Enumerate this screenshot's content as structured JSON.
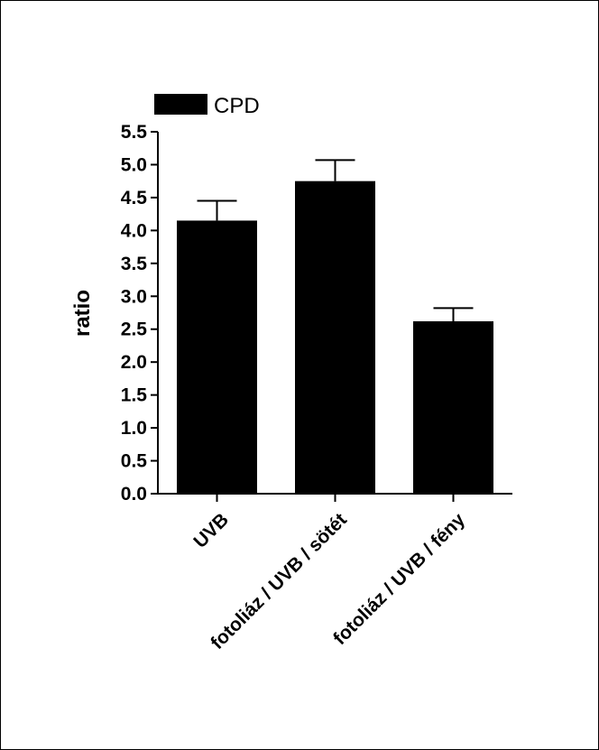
{
  "chart_data": {
    "type": "bar",
    "categories": [
      "UVB",
      "fotoliáz / UVB / sötét",
      "fotoliáz / UVB / fény"
    ],
    "series": [
      {
        "name": "CPD",
        "values": [
          4.15,
          4.75,
          2.62
        ],
        "errors": [
          0.3,
          0.32,
          0.2
        ],
        "color": "#000000"
      }
    ],
    "ylabel": "ratio",
    "xlabel": "",
    "ylim": [
      0,
      5.5
    ],
    "yticks": [
      "0.0",
      "0.5",
      "1.0",
      "1.5",
      "2.0",
      "2.5",
      "3.0",
      "3.5",
      "4.0",
      "4.5",
      "5.0",
      "5.5"
    ],
    "grid": false,
    "legend_position": "top-left"
  }
}
